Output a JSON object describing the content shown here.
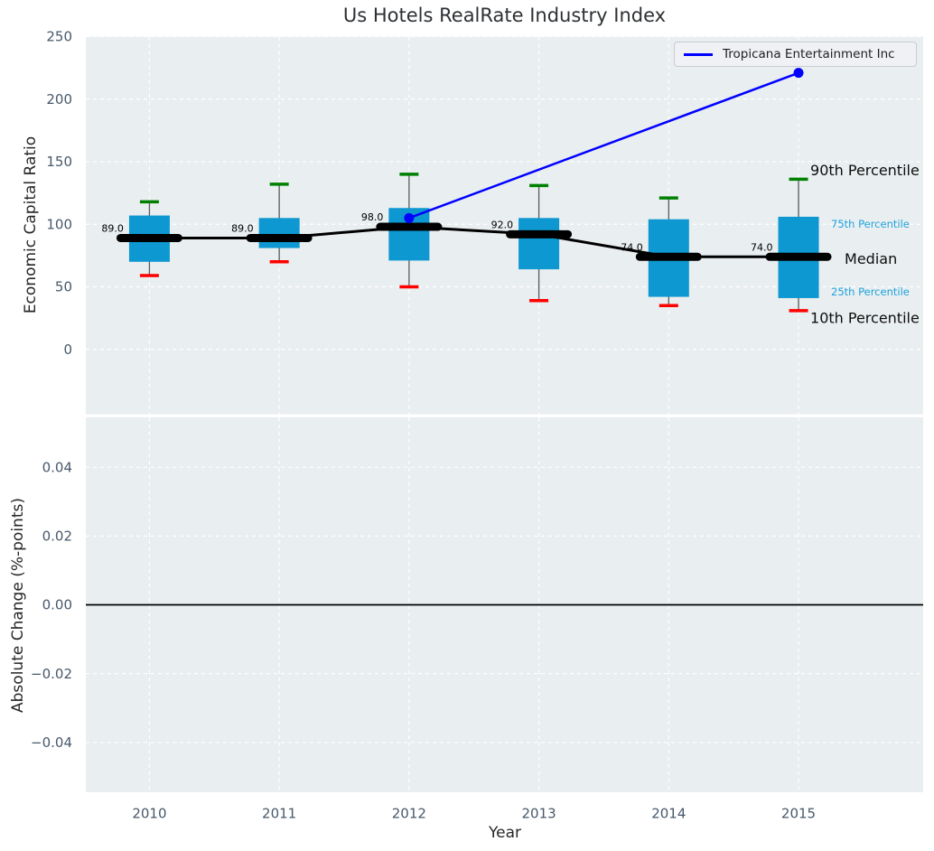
{
  "title": "Us Hotels RealRate Industry Index",
  "legend": {
    "entries": [
      {
        "label": "Tropicana Entertainment Inc",
        "color": "#0000ff"
      }
    ]
  },
  "axes": {
    "x": {
      "label": "Year",
      "tick_labels": [
        "2010",
        "2011",
        "2012",
        "2013",
        "2014",
        "2015"
      ],
      "tick_values": [
        2010,
        2011,
        2012,
        2013,
        2014,
        2015
      ],
      "lim": [
        2009.51,
        2015.96
      ]
    },
    "y_top": {
      "label": "Economic Capital Ratio",
      "tick_labels": [
        "0",
        "50",
        "100",
        "150",
        "200",
        "250"
      ],
      "tick_values": [
        0,
        50,
        100,
        150,
        200,
        250
      ],
      "lim": [
        -51.8,
        250
      ]
    },
    "y_bottom": {
      "label": "Absolute Change (%-points)",
      "tick_labels": [
        "0.04",
        "0.02",
        "0.00",
        "−0.02",
        "−0.04"
      ],
      "tick_values": [
        0.04,
        0.02,
        0.0,
        -0.02,
        -0.04
      ],
      "lim": [
        -0.0545,
        0.0545
      ]
    }
  },
  "chart_data": {
    "type": "boxplot",
    "title": "Us Hotels RealRate Industry Index",
    "xlabel": "Year",
    "ylabel_top": "Economic Capital Ratio",
    "ylabel_bottom": "Absolute Change (%-points)",
    "categories": [
      2010,
      2011,
      2012,
      2013,
      2014,
      2015
    ],
    "series": {
      "p10": [
        59,
        70,
        50,
        39,
        35,
        31
      ],
      "p25": [
        70,
        81,
        71,
        64,
        42,
        41
      ],
      "median": [
        89,
        89,
        98,
        92,
        74,
        74
      ],
      "p75": [
        107,
        105,
        113,
        105,
        104,
        106
      ],
      "p90": [
        118,
        132,
        140,
        131,
        121,
        136
      ]
    },
    "median_annotations": [
      "89.0",
      "89.0",
      "98.0",
      "92.0",
      "74.0",
      "74.0"
    ],
    "company_series": {
      "name": "Tropicana Entertainment Inc",
      "points": [
        {
          "x": 2012,
          "y": 105
        },
        {
          "x": 2015,
          "y": 221
        }
      ]
    },
    "percentile_labels": [
      {
        "text": "90th Percentile",
        "anchor": "p90",
        "style": "big"
      },
      {
        "text": "75th Percentile",
        "anchor": "p75",
        "style": "small"
      },
      {
        "text": "Median",
        "anchor": "median",
        "style": "big"
      },
      {
        "text": "25th Percentile",
        "anchor": "p25",
        "style": "small"
      },
      {
        "text": "10th Percentile",
        "anchor": "p10",
        "style": "big"
      }
    ],
    "bottom_panel": {
      "zero_line": 0.0
    },
    "grid": true,
    "legend_position": "upper right"
  },
  "colors": {
    "box": "#0d98d1",
    "background": "#e9eef0",
    "grid": "#ffffff",
    "median": "#000000",
    "whisker": "#5a5a5a",
    "cap_top": "#008000",
    "cap_bottom": "#ff0000",
    "company": "#0000ff",
    "tick": "#47586b",
    "pct_label_blue": "#1ea3dc"
  }
}
